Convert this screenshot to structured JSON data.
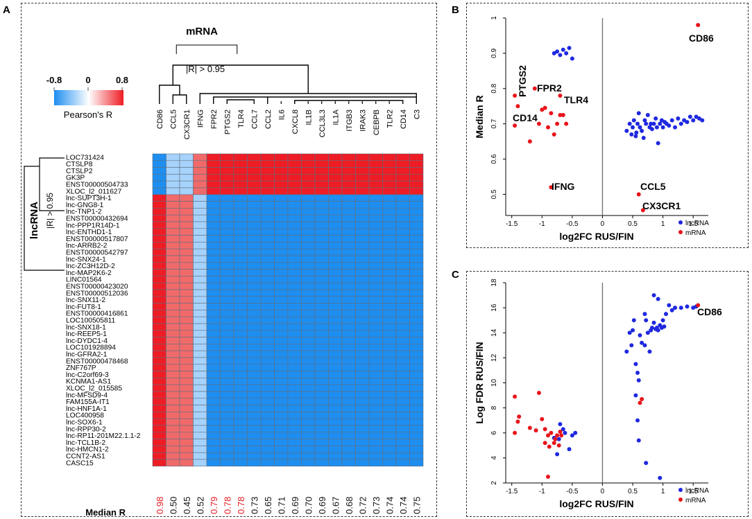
{
  "panel_labels": {
    "a": "A",
    "b": "B",
    "c": "C"
  },
  "chart_data": [
    {
      "panel": "A",
      "type": "heatmap",
      "title": "mRNA",
      "legend": {
        "title": "Pearson's R",
        "ticks": [
          "-0.8",
          "0",
          "0.8"
        ],
        "colors": [
          "#1e8ef0",
          "#ffffff",
          "#ee1c24"
        ]
      },
      "column_cluster_label": "|R| > 0.95",
      "row_cluster_label": "|R| > 0.95",
      "row_axis_label": "lncRNA",
      "median_label": "Median R",
      "columns": [
        "CD86",
        "CCL5",
        "CX3CR1",
        "IFNG",
        "FPR2",
        "PTGS2",
        "TLR4",
        "CCL7",
        "CCL2",
        "IL6",
        "CXCL8",
        "IL1B",
        "CCL3L3",
        "IL1A",
        "ITGB3",
        "IRAK3",
        "CEBPB",
        "TLR2",
        "CD14",
        "C3"
      ],
      "median_r": [
        "0.98",
        "0.50",
        "0.45",
        "0.52",
        "0.79",
        "0.78",
        "0.78",
        "0.73",
        "0.65",
        "0.71",
        "0.69",
        "0.70",
        "0.69",
        "0.67",
        "0.68",
        "0.72",
        "0.73",
        "0.74",
        "0.74",
        "0.75"
      ],
      "median_r_colors": [
        "#e31b23",
        "#111111",
        "#111111",
        "#111111",
        "#e31b23",
        "#e31b23",
        "#e31b23",
        "#111111",
        "#111111",
        "#111111",
        "#111111",
        "#111111",
        "#111111",
        "#111111",
        "#111111",
        "#111111",
        "#111111",
        "#111111",
        "#111111",
        "#111111"
      ],
      "rows": [
        "LOC731424",
        "CTSLP8",
        "CTSLP2",
        "GK3P",
        "ENST00000504733",
        "XLOC_l2_011627",
        "lnc-SUPT3H-1",
        "lnc-GNG8-1",
        "lnc-TNP1-2",
        "ENST00000432694",
        "lnc-PPP1R14D-1",
        "lnc-ENTHD1-1",
        "ENST00000517807",
        "lnc-ARRB2-2",
        "ENST00000542797",
        "lnc-SNX24-1",
        "lnc-ZC3H12D-2",
        "lnc-MAP2K6-2",
        "LINC01564",
        "ENST00000423020",
        "ENST00000512036",
        "lnc-SNX11-2",
        "lnc-FUT8-1",
        "ENST00000416861",
        "LOC100505811",
        "lnc-SNX18-1",
        "lnc-REEP5-1",
        "lnc-DYDC1-4",
        "LOC101928894",
        "lnc-GFRA2-1",
        "ENST00000478468",
        "ZNF767P",
        "lnc-C2orf69-3",
        "KCNMA1-AS1",
        "XLOC_l2_015585",
        "lnc-MFSD9-4",
        "FAM155A-IT1",
        "lnc-HNF1A-1",
        "LOC400958",
        "lnc-SOX6-1",
        "lnc-RPP30-2",
        "lnc-RP11-201M22.1.1-2",
        "lnc-TCL1B-2",
        "lnc-HMCN1-2",
        "CCNT2-AS1",
        "CASC15"
      ],
      "row_groups": [
        {
          "rows": 6,
          "colors": [
            "#1e8ef0",
            "#a6d2fb",
            "#a6d2fb",
            "#f06a6a",
            "#ee1c24",
            "#ee1c24",
            "#ee1c24",
            "#ee1c24",
            "#ee1c24",
            "#ee1c24",
            "#ee1c24",
            "#ee1c24",
            "#ee1c24",
            "#ee1c24",
            "#ee1c24",
            "#ee1c24",
            "#ee1c24",
            "#ee1c24",
            "#ee1c24",
            "#ee1c24"
          ]
        },
        {
          "rows": 40,
          "colors": [
            "#ee1c24",
            "#f06a6a",
            "#f06a6a",
            "#a6d2fb",
            "#1e8ef0",
            "#1e8ef0",
            "#1e8ef0",
            "#1e8ef0",
            "#1e8ef0",
            "#1e8ef0",
            "#1e8ef0",
            "#1e8ef0",
            "#1e8ef0",
            "#1e8ef0",
            "#1e8ef0",
            "#1e8ef0",
            "#1e8ef0",
            "#1e8ef0",
            "#1e8ef0",
            "#1e8ef0"
          ]
        }
      ]
    },
    {
      "panel": "B",
      "type": "scatter",
      "xlabel": "log2FC RUS/FIN",
      "ylabel": "Median R",
      "xlim": [
        -1.6,
        1.75
      ],
      "ylim": [
        0.44,
        1.0
      ],
      "xticks": [
        "-1.5",
        "-1",
        "-0.5",
        "0",
        "0.5",
        "1",
        "1.5"
      ],
      "yticks": [
        "0.5",
        "0.6",
        "0.7",
        "0.8",
        "0.9",
        "1"
      ],
      "legend": [
        {
          "name": "lncRNA",
          "color": "#1f28e0"
        },
        {
          "name": "mRNA",
          "color": "#e8141a"
        }
      ],
      "series": [
        {
          "name": "lncRNA",
          "points": [
            [
              -0.8,
              0.9
            ],
            [
              -0.75,
              0.905
            ],
            [
              -0.7,
              0.895
            ],
            [
              -0.65,
              0.91
            ],
            [
              -0.6,
              0.9
            ],
            [
              -0.55,
              0.915
            ],
            [
              -0.5,
              0.885
            ],
            [
              0.4,
              0.68
            ],
            [
              0.45,
              0.7
            ],
            [
              0.48,
              0.67
            ],
            [
              0.5,
              0.69
            ],
            [
              0.52,
              0.71
            ],
            [
              0.55,
              0.665
            ],
            [
              0.58,
              0.7
            ],
            [
              0.6,
              0.73
            ],
            [
              0.62,
              0.69
            ],
            [
              0.65,
              0.68
            ],
            [
              0.7,
              0.71
            ],
            [
              0.72,
              0.7
            ],
            [
              0.75,
              0.725
            ],
            [
              0.78,
              0.69
            ],
            [
              0.8,
              0.7
            ],
            [
              0.82,
              0.685
            ],
            [
              0.85,
              0.7
            ],
            [
              0.88,
              0.715
            ],
            [
              0.9,
              0.69
            ],
            [
              0.92,
              0.645
            ],
            [
              0.95,
              0.7
            ],
            [
              0.98,
              0.71
            ],
            [
              1.0,
              0.69
            ],
            [
              1.03,
              0.705
            ],
            [
              1.06,
              0.7
            ],
            [
              1.1,
              0.695
            ],
            [
              1.15,
              0.71
            ],
            [
              1.2,
              0.69
            ],
            [
              1.25,
              0.715
            ],
            [
              1.3,
              0.7
            ],
            [
              1.35,
              0.71
            ],
            [
              1.4,
              0.705
            ],
            [
              1.45,
              0.72
            ],
            [
              1.5,
              0.71
            ],
            [
              1.55,
              0.72
            ],
            [
              1.6,
              0.715
            ],
            [
              1.65,
              0.71
            ],
            [
              0.68,
              0.66
            ],
            [
              0.56,
              0.675
            ]
          ]
        },
        {
          "name": "mRNA",
          "points": [
            [
              1.58,
              0.98
            ],
            [
              -1.45,
              0.78
            ],
            [
              -1.12,
              0.8
            ],
            [
              -0.7,
              0.78
            ],
            [
              -1.4,
              0.75
            ],
            [
              -1.45,
              0.695
            ],
            [
              -1.2,
              0.65
            ],
            [
              -1.05,
              0.7
            ],
            [
              -1.0,
              0.74
            ],
            [
              -0.95,
              0.745
            ],
            [
              -0.9,
              0.69
            ],
            [
              -0.85,
              0.73
            ],
            [
              -0.8,
              0.67
            ],
            [
              -0.75,
              0.7
            ],
            [
              -0.7,
              0.725
            ],
            [
              -0.65,
              0.725
            ],
            [
              -0.6,
              0.7
            ],
            [
              -0.85,
              0.52
            ],
            [
              0.6,
              0.5
            ],
            [
              0.67,
              0.455
            ]
          ]
        }
      ],
      "annotations": [
        "CD86",
        "PTGS2",
        "FPR2",
        "TLR4",
        "CD14",
        "IFNG",
        "CCL5",
        "CX3CR1"
      ]
    },
    {
      "panel": "C",
      "type": "scatter",
      "xlabel": "log2FC RUS/FIN",
      "ylabel": "Log FDR RUS/FIN",
      "xlim": [
        -1.6,
        1.75
      ],
      "ylim": [
        2.0,
        18.0
      ],
      "xticks": [
        "-1.5",
        "-1",
        "-0.5",
        "0",
        "0.5",
        "1",
        "1.5"
      ],
      "yticks": [
        "2",
        "4",
        "6",
        "8",
        "10",
        "12",
        "14",
        "16",
        "18"
      ],
      "legend": [
        {
          "name": "lncRNA",
          "color": "#1f28e0"
        },
        {
          "name": "mRNA",
          "color": "#e8141a"
        }
      ],
      "series": [
        {
          "name": "lncRNA",
          "points": [
            [
              0.4,
              12.5
            ],
            [
              0.45,
              14.0
            ],
            [
              0.5,
              14.2
            ],
            [
              0.52,
              15.0
            ],
            [
              0.48,
              13.0
            ],
            [
              0.55,
              11.5
            ],
            [
              0.58,
              10.8
            ],
            [
              0.6,
              10.2
            ],
            [
              0.55,
              9.0
            ],
            [
              0.58,
              7.0
            ],
            [
              0.6,
              5.4
            ],
            [
              0.62,
              13.8
            ],
            [
              0.65,
              13.2
            ],
            [
              0.7,
              15.5
            ],
            [
              0.72,
              15.0
            ],
            [
              0.75,
              14.0
            ],
            [
              0.78,
              12.5
            ],
            [
              0.8,
              14.2
            ],
            [
              0.82,
              14.4
            ],
            [
              0.85,
              14.8
            ],
            [
              0.88,
              14.3
            ],
            [
              0.9,
              14.4
            ],
            [
              0.92,
              14.2
            ],
            [
              0.95,
              14.6
            ],
            [
              0.98,
              14.4
            ],
            [
              1.0,
              15.0
            ],
            [
              1.02,
              14.5
            ],
            [
              1.05,
              15.5
            ],
            [
              1.1,
              16.2
            ],
            [
              1.15,
              15.8
            ],
            [
              1.2,
              16.0
            ],
            [
              1.3,
              16.0
            ],
            [
              1.4,
              16.1
            ],
            [
              1.5,
              16.0
            ],
            [
              1.55,
              16.1
            ],
            [
              0.85,
              17.0
            ],
            [
              0.92,
              16.7
            ],
            [
              0.7,
              13.0
            ],
            [
              0.72,
              3.6
            ],
            [
              0.95,
              2.4
            ],
            [
              -0.7,
              6.7
            ],
            [
              -0.65,
              6.3
            ],
            [
              -0.62,
              6.0
            ],
            [
              -0.55,
              4.7
            ],
            [
              -0.5,
              5.8
            ],
            [
              -0.45,
              6.0
            ],
            [
              -0.75,
              4.3
            ],
            [
              -0.8,
              5.6
            ],
            [
              -0.72,
              5.5
            ]
          ]
        },
        {
          "name": "mRNA",
          "points": [
            [
              1.58,
              16.2
            ],
            [
              -1.45,
              8.9
            ],
            [
              -1.4,
              6.9
            ],
            [
              -1.38,
              7.3
            ],
            [
              -1.45,
              6.0
            ],
            [
              -1.2,
              6.4
            ],
            [
              -1.1,
              6.2
            ],
            [
              -1.05,
              9.2
            ],
            [
              -1.0,
              7.1
            ],
            [
              -0.95,
              6.3
            ],
            [
              -0.95,
              5.2
            ],
            [
              -0.9,
              5.8
            ],
            [
              -0.88,
              4.9
            ],
            [
              -0.85,
              6.0
            ],
            [
              -0.8,
              5.2
            ],
            [
              -0.78,
              5.5
            ],
            [
              -0.75,
              5.8
            ],
            [
              -0.7,
              6.1
            ],
            [
              -0.72,
              5.0
            ],
            [
              -0.68,
              5.8
            ],
            [
              -0.9,
              2.5
            ],
            [
              0.65,
              8.7
            ],
            [
              0.62,
              8.4
            ]
          ]
        }
      ],
      "annotations": [
        "CD86"
      ]
    }
  ]
}
